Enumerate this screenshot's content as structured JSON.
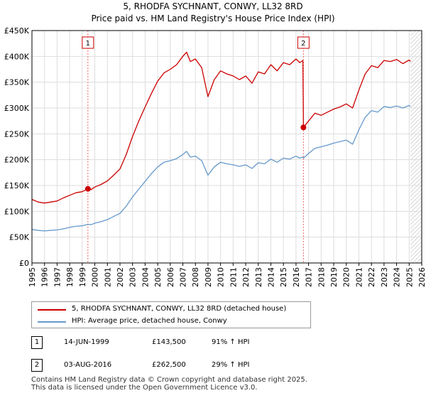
{
  "chart_data": {
    "type": "line",
    "title": "5, RHODFA SYCHNANT, CONWY, LL32 8RD",
    "subtitle": "Price paid vs. HM Land Registry's House Price Index (HPI)",
    "xlim": [
      1995,
      2026
    ],
    "ylim": [
      0,
      450000
    ],
    "grid": true,
    "legend_position": "bottom-left",
    "x_ticks": [
      "1995",
      "1996",
      "1997",
      "1998",
      "1999",
      "2000",
      "2001",
      "2002",
      "2003",
      "2004",
      "2005",
      "2006",
      "2007",
      "2008",
      "2009",
      "2010",
      "2011",
      "2012",
      "2013",
      "2014",
      "2015",
      "2016",
      "2017",
      "2018",
      "2019",
      "2020",
      "2021",
      "2022",
      "2023",
      "2024",
      "2025",
      "2026"
    ],
    "y_ticks": [
      {
        "value": 0,
        "label": "£0"
      },
      {
        "value": 50000,
        "label": "£50K"
      },
      {
        "value": 100000,
        "label": "£100K"
      },
      {
        "value": 150000,
        "label": "£150K"
      },
      {
        "value": 200000,
        "label": "£200K"
      },
      {
        "value": 250000,
        "label": "£250K"
      },
      {
        "value": 300000,
        "label": "£300K"
      },
      {
        "value": 350000,
        "label": "£350K"
      },
      {
        "value": 400000,
        "label": "£400K"
      },
      {
        "value": 450000,
        "label": "£450K"
      }
    ],
    "series": [
      {
        "name": "5, RHODFA SYCHNANT, CONWY, LL32 8RD (detached house)",
        "color": "#cc0000",
        "x": [
          1995.0,
          1995.5,
          1996.0,
          1996.5,
          1997.0,
          1997.5,
          1998.0,
          1998.5,
          1999.0,
          1999.45,
          1999.7,
          2000.0,
          2000.5,
          2001.0,
          2001.5,
          2002.0,
          2002.5,
          2003.0,
          2003.5,
          2004.0,
          2004.5,
          2005.0,
          2005.5,
          2006.0,
          2006.5,
          2007.0,
          2007.3,
          2007.6,
          2008.0,
          2008.5,
          2009.0,
          2009.5,
          2010.0,
          2010.5,
          2011.0,
          2011.5,
          2012.0,
          2012.5,
          2013.0,
          2013.5,
          2014.0,
          2014.5,
          2015.0,
          2015.5,
          2016.0,
          2016.3,
          2016.55,
          2016.59,
          2017.0,
          2017.5,
          2018.0,
          2018.5,
          2019.0,
          2019.5,
          2020.0,
          2020.5,
          2021.0,
          2021.5,
          2022.0,
          2022.5,
          2023.0,
          2023.5,
          2024.0,
          2024.5,
          2025.0,
          2025.1
        ],
        "values": [
          123000,
          118000,
          116000,
          118000,
          120000,
          126000,
          131000,
          136000,
          138000,
          143500,
          142000,
          147000,
          152000,
          159000,
          170000,
          182000,
          210000,
          245000,
          275000,
          302000,
          328000,
          352000,
          368000,
          375000,
          384000,
          400000,
          408000,
          390000,
          395000,
          378000,
          322000,
          355000,
          372000,
          366000,
          362000,
          355000,
          362000,
          348000,
          370000,
          366000,
          384000,
          372000,
          388000,
          384000,
          395000,
          388000,
          392000,
          262500,
          275000,
          290000,
          286000,
          292000,
          298000,
          302000,
          308000,
          300000,
          335000,
          366000,
          382000,
          378000,
          392000,
          390000,
          394000,
          386000,
          393000,
          390000
        ]
      },
      {
        "name": "HPI: Average price, detached house, Conwy",
        "color": "#6699cc",
        "x": [
          1995.0,
          1995.5,
          1996.0,
          1996.5,
          1997.0,
          1997.5,
          1998.0,
          1998.5,
          1999.0,
          1999.45,
          1999.7,
          2000.0,
          2000.5,
          2001.0,
          2001.5,
          2002.0,
          2002.5,
          2003.0,
          2003.5,
          2004.0,
          2004.5,
          2005.0,
          2005.5,
          2006.0,
          2006.5,
          2007.0,
          2007.3,
          2007.6,
          2008.0,
          2008.5,
          2009.0,
          2009.5,
          2010.0,
          2010.5,
          2011.0,
          2011.5,
          2012.0,
          2012.5,
          2013.0,
          2013.5,
          2014.0,
          2014.5,
          2015.0,
          2015.5,
          2016.0,
          2016.3,
          2016.55,
          2016.59,
          2017.0,
          2017.5,
          2018.0,
          2018.5,
          2019.0,
          2019.5,
          2020.0,
          2020.5,
          2021.0,
          2021.5,
          2022.0,
          2022.5,
          2023.0,
          2023.5,
          2024.0,
          2024.5,
          2025.0,
          2025.1
        ],
        "values": [
          65000,
          63000,
          62000,
          63000,
          64000,
          66000,
          69000,
          71000,
          72000,
          75000,
          74000,
          77000,
          80000,
          84000,
          90000,
          96000,
          110000,
          128000,
          143000,
          158000,
          173000,
          186000,
          195000,
          198000,
          202000,
          210000,
          216000,
          205000,
          207000,
          198000,
          170000,
          186000,
          195000,
          192000,
          190000,
          187000,
          190000,
          183000,
          194000,
          192000,
          201000,
          195000,
          203000,
          201000,
          207000,
          203000,
          205000,
          203000,
          212000,
          222000,
          225000,
          228000,
          232000,
          235000,
          238000,
          230000,
          258000,
          282000,
          295000,
          292000,
          303000,
          301000,
          304000,
          300000,
          305000,
          303000
        ]
      }
    ],
    "sale_markers": [
      {
        "label": "1",
        "x": 1999.45,
        "value": 143500
      },
      {
        "label": "2",
        "x": 2016.59,
        "value": 262500
      }
    ],
    "annotations": {
      "future_hatch_from": 2025.1
    }
  },
  "legend": {
    "property_label": "5, RHODFA SYCHNANT, CONWY, LL32 8RD (detached house)",
    "hpi_label": "HPI: Average price, detached house, Conwy"
  },
  "transactions": [
    {
      "num": "1",
      "date": "14-JUN-1999",
      "price": "£143,500",
      "hpi_change": "91% ↑ HPI"
    },
    {
      "num": "2",
      "date": "03-AUG-2016",
      "price": "£262,500",
      "hpi_change": "29% ↑ HPI"
    }
  ],
  "footer": {
    "line1": "Contains HM Land Registry data © Crown copyright and database right 2025.",
    "line2": "This data is licensed under the Open Government Licence v3.0."
  },
  "colors": {
    "property_line": "#cc0000",
    "hpi_line": "#6699cc",
    "grid": "#dddddd",
    "marker_vline": "#ee6666"
  }
}
